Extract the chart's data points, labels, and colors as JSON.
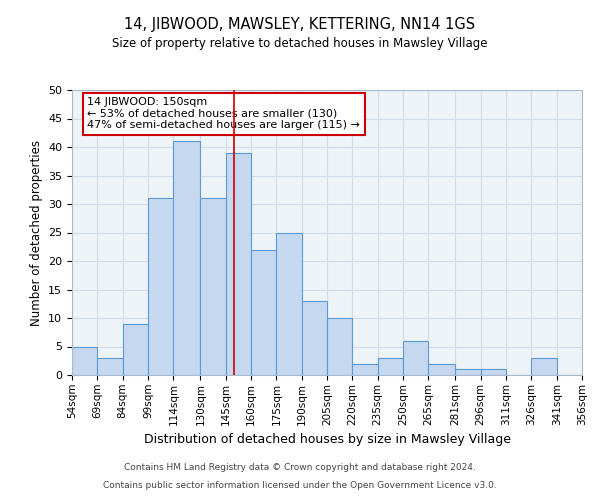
{
  "title": "14, JIBWOOD, MAWSLEY, KETTERING, NN14 1GS",
  "subtitle": "Size of property relative to detached houses in Mawsley Village",
  "xlabel": "Distribution of detached houses by size in Mawsley Village",
  "ylabel": "Number of detached properties",
  "footer_lines": [
    "Contains HM Land Registry data © Crown copyright and database right 2024.",
    "Contains public sector information licensed under the Open Government Licence v3.0."
  ],
  "bin_edges": [
    54,
    69,
    84,
    99,
    114,
    130,
    145,
    160,
    175,
    190,
    205,
    220,
    235,
    250,
    265,
    281,
    296,
    311,
    326,
    341,
    356
  ],
  "counts": [
    5,
    3,
    9,
    31,
    41,
    31,
    39,
    22,
    25,
    13,
    10,
    2,
    3,
    6,
    2,
    1,
    1,
    0,
    3,
    0
  ],
  "bar_color": "#c5d8f0",
  "bar_edge_color": "#5b9bd5",
  "grid_color": "#d0dce8",
  "bg_color": "#eef3f8",
  "vline_x": 150,
  "vline_color": "#cc0000",
  "annotation_box_text": "14 JIBWOOD: 150sqm\n← 53% of detached houses are smaller (130)\n47% of semi-detached houses are larger (115) →",
  "annotation_box_color": "#cc0000",
  "ylim": [
    0,
    50
  ],
  "yticks": [
    0,
    5,
    10,
    15,
    20,
    25,
    30,
    35,
    40,
    45,
    50
  ]
}
